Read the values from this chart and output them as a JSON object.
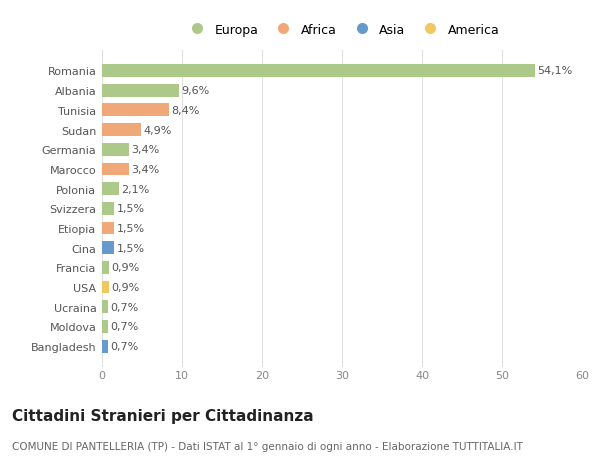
{
  "categories": [
    "Romania",
    "Albania",
    "Tunisia",
    "Sudan",
    "Germania",
    "Marocco",
    "Polonia",
    "Svizzera",
    "Etiopia",
    "Cina",
    "Francia",
    "USA",
    "Ucraina",
    "Moldova",
    "Bangladesh"
  ],
  "values": [
    54.1,
    9.6,
    8.4,
    4.9,
    3.4,
    3.4,
    2.1,
    1.5,
    1.5,
    1.5,
    0.9,
    0.9,
    0.7,
    0.7,
    0.7
  ],
  "labels": [
    "54,1%",
    "9,6%",
    "8,4%",
    "4,9%",
    "3,4%",
    "3,4%",
    "2,1%",
    "1,5%",
    "1,5%",
    "1,5%",
    "0,9%",
    "0,9%",
    "0,7%",
    "0,7%",
    "0,7%"
  ],
  "continents": [
    "Europa",
    "Europa",
    "Africa",
    "Africa",
    "Europa",
    "Africa",
    "Europa",
    "Europa",
    "Africa",
    "Asia",
    "Europa",
    "America",
    "Europa",
    "Europa",
    "Asia"
  ],
  "continent_colors": {
    "Europa": "#adc98a",
    "Africa": "#f0a878",
    "Asia": "#6699cc",
    "America": "#f0c860"
  },
  "legend_items": [
    "Europa",
    "Africa",
    "Asia",
    "America"
  ],
  "title": "Cittadini Stranieri per Cittadinanza",
  "subtitle": "COMUNE DI PANTELLERIA (TP) - Dati ISTAT al 1° gennaio di ogni anno - Elaborazione TUTTITALIA.IT",
  "xlim": [
    0,
    60
  ],
  "xticks": [
    0,
    10,
    20,
    30,
    40,
    50,
    60
  ],
  "background_color": "#ffffff",
  "grid_color": "#e0e0e0",
  "bar_height": 0.65,
  "label_fontsize": 8,
  "tick_fontsize": 8,
  "title_fontsize": 11,
  "subtitle_fontsize": 7.5
}
